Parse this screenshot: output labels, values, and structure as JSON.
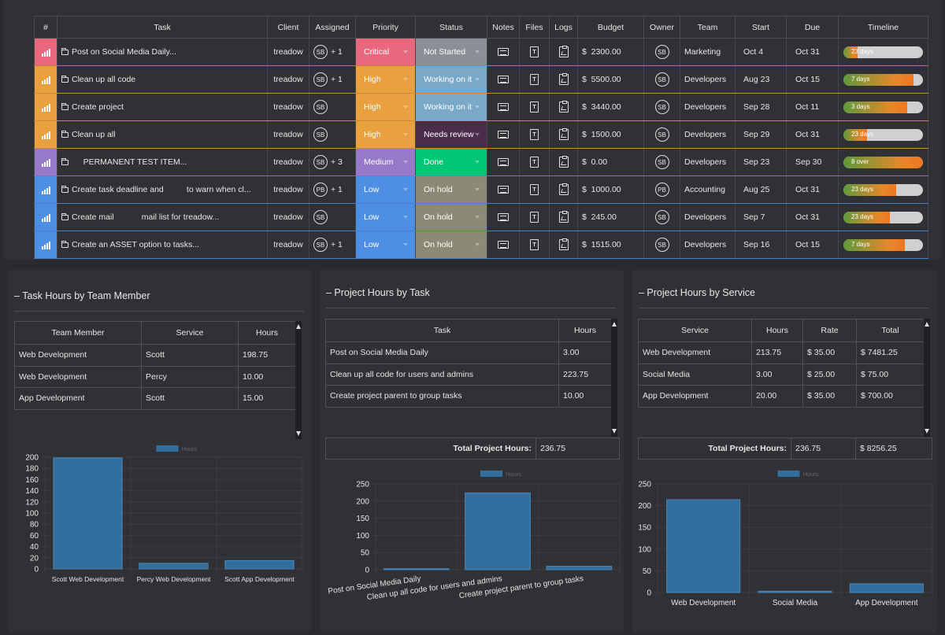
{
  "columns": [
    "#",
    "Task",
    "Client",
    "Assigned",
    "Priority",
    "Status",
    "Notes",
    "Files",
    "Logs",
    "Budget",
    "Owner",
    "Team",
    "Start",
    "Due",
    "Timeline"
  ],
  "priority_colors": {
    "Critical": "#e8697d",
    "High": "#e9a03e",
    "Medium": "#9679c9",
    "Low": "#4e8fe4"
  },
  "status_colors": {
    "Not Started": "#8a9096",
    "Working on it": "#7aa9c8",
    "Needs review": "#4a2c4d",
    "Done": "#02c875",
    "On hold": "#8b8a76"
  },
  "rows": [
    {
      "task": "Post on Social Media Daily...",
      "client": "treadow",
      "assigned": "SB",
      "extra": "+ 1",
      "priority": "Critical",
      "status": "Not Started",
      "budget": "$  2300.00",
      "owner": "SB",
      "team": "Marketing",
      "start": "Oct 4",
      "due": "Oct 31",
      "timeline": "23 days",
      "progress": 0.18
    },
    {
      "task": "Clean up all code",
      "client": "treadow",
      "assigned": "SB",
      "extra": "+ 1",
      "priority": "High",
      "status": "Working on it",
      "budget": "$  5500.00",
      "owner": "SB",
      "team": "Developers",
      "start": "Aug 23",
      "due": "Oct 15",
      "timeline": "7 days",
      "progress": 0.88
    },
    {
      "task": "Create project",
      "client": "treadow",
      "assigned": "SB",
      "extra": "",
      "priority": "High",
      "status": "Working on it",
      "budget": "$  3440.00",
      "owner": "SB",
      "team": "Developers",
      "start": "Sep 28",
      "due": "Oct 11",
      "timeline": "3 days",
      "progress": 0.8
    },
    {
      "task": "Clean up all",
      "client": "treadow",
      "assigned": "SB",
      "extra": "",
      "priority": "High",
      "status": "Needs review",
      "budget": "$  1500.00",
      "owner": "SB",
      "team": "Developers",
      "start": "Sep 29",
      "due": "Oct 31",
      "timeline": "23 days",
      "progress": 0.3
    },
    {
      "task": "     PERMANENT TEST ITEM...",
      "client": "treadow",
      "assigned": "SB",
      "extra": "+ 3",
      "priority": "Medium",
      "status": "Done",
      "budget": "$  0.00",
      "owner": "SB",
      "team": "Developers",
      "start": "Sep 23",
      "due": "Sep 30",
      "timeline": "8 over",
      "progress": 1.0
    },
    {
      "task": "Create task deadline and          to warn when cl...",
      "client": "treadow",
      "assigned": "PB",
      "extra": "+ 1",
      "priority": "Low",
      "status": "On hold",
      "budget": "$  1000.00",
      "owner": "PB",
      "team": "Accounting",
      "start": "Aug 25",
      "due": "Oct 31",
      "timeline": "23 days",
      "progress": 0.66
    },
    {
      "task": "Create mail            mail list for treadow...",
      "client": "treadow",
      "assigned": "SB",
      "extra": "",
      "priority": "Low",
      "status": "On hold",
      "budget": "$  245.00",
      "owner": "SB",
      "team": "Developers",
      "start": "Sep 7",
      "due": "Oct 31",
      "timeline": "23 days",
      "progress": 0.58
    },
    {
      "task": "Create an ASSET option to tasks...",
      "client": "treadow",
      "assigned": "SB",
      "extra": "+ 1",
      "priority": "Low",
      "status": "On hold",
      "budget": "$  1515.00",
      "owner": "SB",
      "team": "Developers",
      "start": "Sep 16",
      "due": "Oct 15",
      "timeline": "7 days",
      "progress": 0.77
    }
  ],
  "panel1": {
    "title": "– Task Hours by Team Member",
    "headers": [
      "Team Member",
      "Service",
      "Hours"
    ],
    "rows": [
      [
        "Web Development",
        "Scott",
        "198.75"
      ],
      [
        "Web Development",
        "Percy",
        "10.00"
      ],
      [
        "App Development",
        "Scott",
        "15.00"
      ]
    ]
  },
  "panel2": {
    "title": "– Project Hours by Task",
    "headers": [
      "Task",
      "Hours"
    ],
    "rows": [
      [
        "Post on Social Media Daily",
        "3.00"
      ],
      [
        "Clean up all code for users and admins",
        "223.75"
      ],
      [
        "Create project parent to group tasks",
        "10.00"
      ]
    ],
    "total_label": "Total Project Hours:",
    "total_value": "236.75"
  },
  "panel3": {
    "title": "– Project Hours by Service",
    "headers": [
      "Service",
      "Hours",
      "Rate",
      "Total"
    ],
    "rows": [
      [
        "Web Development",
        "213.75",
        "$ 35.00",
        "$ 7481.25"
      ],
      [
        "Social Media",
        "3.00",
        "$ 25.00",
        "$ 75.00"
      ],
      [
        "App Development",
        "20.00",
        "$ 35.00",
        "$ 700.00"
      ]
    ],
    "total_label": "Total Project Hours:",
    "total_value": "236.75",
    "total_amount": "$ 8256.25"
  },
  "chart_data": [
    {
      "type": "bar",
      "legend": "Hours",
      "categories": [
        "Scott Web Development",
        "Percy Web Development",
        "Scott App Development"
      ],
      "values": [
        198.75,
        10,
        15
      ],
      "ylim": [
        0,
        200
      ],
      "ticks": [
        0,
        20,
        40,
        60,
        80,
        100,
        120,
        140,
        160,
        180,
        200
      ],
      "bar_color": "#336f9e"
    },
    {
      "type": "bar",
      "legend": "Hours",
      "categories": [
        "Post on Social Media Daily",
        "Clean up all code for users and admins",
        "Create project parent to group tasks"
      ],
      "values": [
        3,
        223.75,
        10
      ],
      "ylim": [
        0,
        250
      ],
      "ticks": [
        0,
        50,
        100,
        150,
        200,
        250
      ],
      "bar_color": "#336f9e"
    },
    {
      "type": "bar",
      "legend": "Hours",
      "categories": [
        "Web Development",
        "Social Media",
        "App Development"
      ],
      "values": [
        213.75,
        3,
        20
      ],
      "ylim": [
        0,
        250
      ],
      "ticks": [
        0,
        50,
        100,
        150,
        200,
        250
      ],
      "bar_color": "#336f9e"
    }
  ]
}
